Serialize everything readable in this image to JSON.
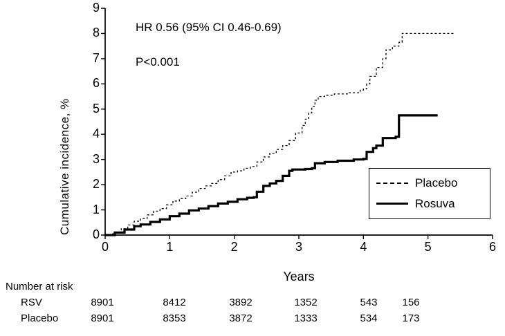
{
  "annotation": {
    "hr_text": "HR 0.56 (95% CI 0.46-0.69)",
    "p_text": "P<0.001"
  },
  "axes": {
    "ylabel": "Cumulative incidence, %",
    "xlabel": "Years",
    "yticks": [
      0,
      1,
      2,
      3,
      4,
      5,
      6,
      7,
      8,
      9
    ],
    "xticks": [
      0,
      1,
      2,
      3,
      4,
      5,
      6
    ]
  },
  "legend": {
    "items": [
      {
        "label": "Placebo",
        "line": "dashed"
      },
      {
        "label": "Rosuva",
        "line": "solid"
      }
    ]
  },
  "risk_table": {
    "title": "Number at risk",
    "rows": [
      {
        "label": "RSV",
        "values": [
          "8901",
          "8412",
          "3892",
          "1352",
          "543",
          "156"
        ]
      },
      {
        "label": "Placebo",
        "values": [
          "8901",
          "8353",
          "3872",
          "1333",
          "534",
          "173"
        ]
      }
    ]
  },
  "chart_data": {
    "type": "line",
    "title": "",
    "xlabel": "Years",
    "ylabel": "Cumulative incidence, %",
    "xlim": [
      0,
      6
    ],
    "ylim": [
      0,
      9
    ],
    "grid": false,
    "step": "post",
    "legend_position": "lower right",
    "annotations": [
      "HR 0.56 (95% CI 0.46-0.69)",
      "P<0.001"
    ],
    "series": [
      {
        "name": "Placebo",
        "style": "dashed",
        "points": [
          [
            0,
            0
          ],
          [
            0.08,
            0.05
          ],
          [
            0.15,
            0.12
          ],
          [
            0.25,
            0.25
          ],
          [
            0.35,
            0.4
          ],
          [
            0.45,
            0.55
          ],
          [
            0.55,
            0.65
          ],
          [
            0.65,
            0.8
          ],
          [
            0.75,
            0.95
          ],
          [
            0.85,
            1.05
          ],
          [
            0.95,
            1.2
          ],
          [
            1.05,
            1.35
          ],
          [
            1.15,
            1.45
          ],
          [
            1.25,
            1.55
          ],
          [
            1.35,
            1.7
          ],
          [
            1.45,
            1.85
          ],
          [
            1.55,
            1.95
          ],
          [
            1.65,
            2.05
          ],
          [
            1.75,
            2.2
          ],
          [
            1.85,
            2.35
          ],
          [
            1.95,
            2.5
          ],
          [
            2.05,
            2.55
          ],
          [
            2.15,
            2.65
          ],
          [
            2.25,
            2.72
          ],
          [
            2.35,
            2.9
          ],
          [
            2.45,
            3.1
          ],
          [
            2.55,
            3.25
          ],
          [
            2.65,
            3.4
          ],
          [
            2.75,
            3.55
          ],
          [
            2.85,
            3.75
          ],
          [
            2.95,
            4.05
          ],
          [
            3.05,
            4.35
          ],
          [
            3.1,
            4.6
          ],
          [
            3.15,
            4.85
          ],
          [
            3.2,
            5.1
          ],
          [
            3.25,
            5.35
          ],
          [
            3.3,
            5.5
          ],
          [
            3.4,
            5.55
          ],
          [
            3.55,
            5.6
          ],
          [
            3.75,
            5.65
          ],
          [
            3.95,
            5.75
          ],
          [
            4.0,
            5.8
          ],
          [
            4.05,
            6.0
          ],
          [
            4.1,
            6.3
          ],
          [
            4.2,
            6.65
          ],
          [
            4.3,
            7.0
          ],
          [
            4.35,
            7.35
          ],
          [
            4.45,
            7.5
          ],
          [
            4.55,
            7.65
          ],
          [
            4.6,
            8.0
          ],
          [
            5.4,
            8.0
          ]
        ]
      },
      {
        "name": "Rosuva",
        "style": "solid",
        "points": [
          [
            0,
            0
          ],
          [
            0.15,
            0.1
          ],
          [
            0.3,
            0.22
          ],
          [
            0.45,
            0.35
          ],
          [
            0.55,
            0.42
          ],
          [
            0.7,
            0.52
          ],
          [
            0.85,
            0.62
          ],
          [
            1.0,
            0.75
          ],
          [
            1.15,
            0.85
          ],
          [
            1.3,
            0.98
          ],
          [
            1.45,
            1.05
          ],
          [
            1.6,
            1.15
          ],
          [
            1.75,
            1.25
          ],
          [
            1.9,
            1.32
          ],
          [
            2.05,
            1.42
          ],
          [
            2.2,
            1.48
          ],
          [
            2.3,
            1.5
          ],
          [
            2.35,
            1.72
          ],
          [
            2.45,
            1.95
          ],
          [
            2.55,
            2.05
          ],
          [
            2.65,
            2.15
          ],
          [
            2.75,
            2.35
          ],
          [
            2.85,
            2.55
          ],
          [
            2.9,
            2.6
          ],
          [
            3.1,
            2.62
          ],
          [
            3.2,
            2.65
          ],
          [
            3.25,
            2.85
          ],
          [
            3.4,
            2.9
          ],
          [
            3.6,
            2.95
          ],
          [
            3.85,
            3.0
          ],
          [
            4.0,
            3.02
          ],
          [
            4.05,
            3.3
          ],
          [
            4.15,
            3.45
          ],
          [
            4.2,
            3.55
          ],
          [
            4.3,
            3.85
          ],
          [
            4.5,
            3.9
          ],
          [
            4.55,
            4.75
          ],
          [
            5.15,
            4.75
          ]
        ]
      }
    ]
  }
}
